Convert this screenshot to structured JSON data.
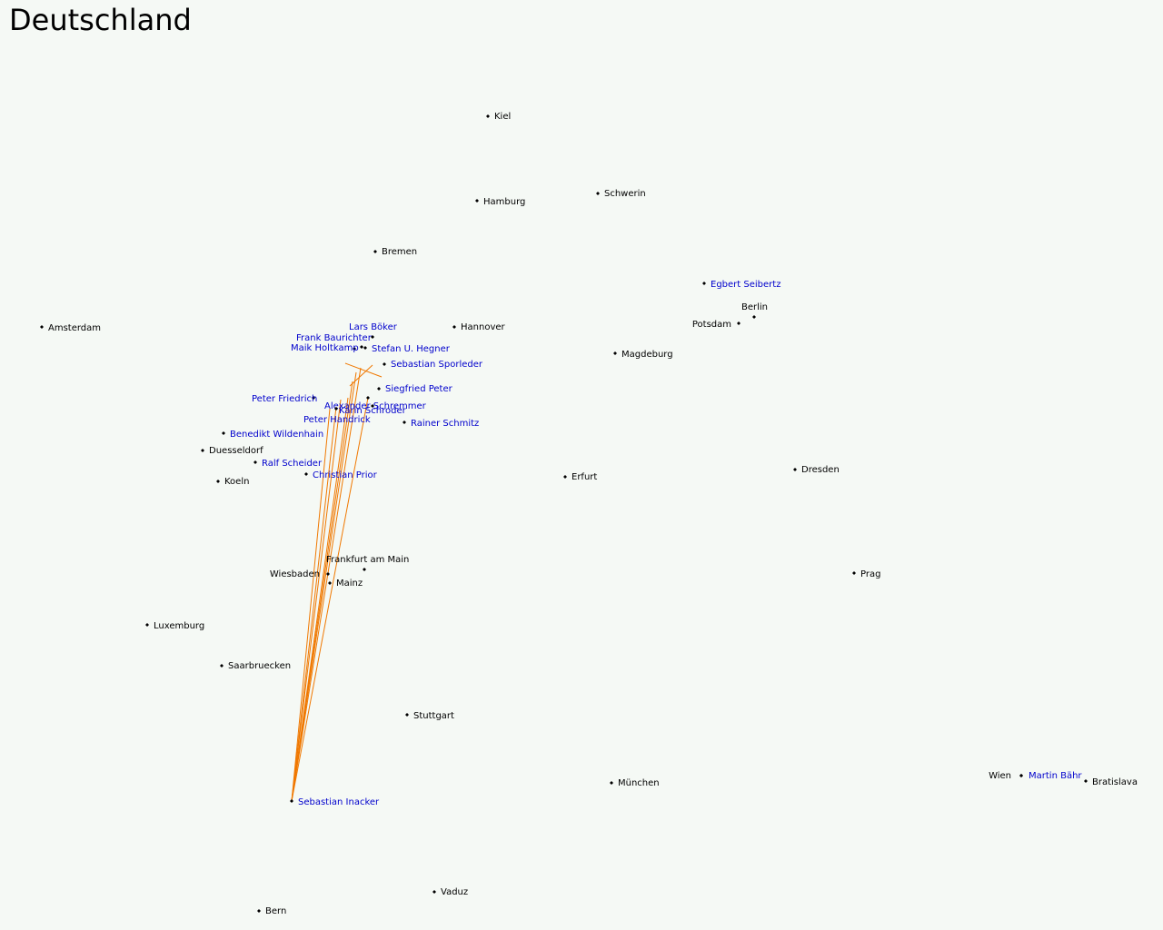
{
  "title": "Deutschland",
  "cities": [
    "Kiel",
    "Hamburg",
    "Schwerin",
    "Bremen",
    "Amsterdam",
    "Hannover",
    "Berlin",
    "Potsdam",
    "Magdeburg",
    "Duesseldorf",
    "Koeln",
    "Erfurt",
    "Dresden",
    "Frankfurt am Main",
    "Wiesbaden",
    "Mainz",
    "Prag",
    "Luxemburg",
    "Saarbruecken",
    "Stuttgart",
    "München",
    "Wien",
    "Bratislava",
    "Vaduz",
    "Bern"
  ],
  "people": [
    "Egbert Seibertz",
    "Lars Böker",
    "Frank Baurichter",
    "Stefan U. Hegner",
    "Maik Holtkamp",
    "Sebastian Sporleder",
    "Siegfried Peter",
    "Peter Friedrich",
    "Alexander Schremmer",
    "Karin Schroder",
    "Peter Handrick",
    "Rainer Schmitz",
    "Benedikt Wildenhain",
    "Ralf Scheider",
    "Christian Prior",
    "Sebastian Inacker",
    "Martin Bähr"
  ]
}
